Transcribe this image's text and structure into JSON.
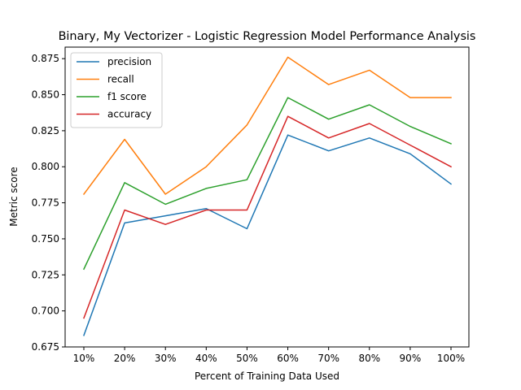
{
  "chart_data": {
    "type": "line",
    "title": "Binary, My Vectorizer - Logistic Regression Model Performance Analysis",
    "xlabel": "Percent of Training Data Used",
    "ylabel": "Metric score",
    "categories": [
      "10%",
      "20%",
      "30%",
      "40%",
      "50%",
      "60%",
      "70%",
      "80%",
      "90%",
      "100%"
    ],
    "ylim": [
      0.675,
      0.883
    ],
    "yticks": [
      "0.675",
      "0.700",
      "0.725",
      "0.750",
      "0.775",
      "0.800",
      "0.825",
      "0.850",
      "0.875"
    ],
    "grid": false,
    "legend_position": "top-left",
    "series": [
      {
        "name": "precision",
        "color": "#1f77b4",
        "values": [
          0.683,
          0.761,
          0.766,
          0.771,
          0.757,
          0.822,
          0.811,
          0.82,
          0.809,
          0.788
        ]
      },
      {
        "name": "recall",
        "color": "#ff7f0e",
        "values": [
          0.781,
          0.819,
          0.781,
          0.8,
          0.829,
          0.876,
          0.857,
          0.867,
          0.848,
          0.848
        ]
      },
      {
        "name": "f1 score",
        "color": "#2ca02c",
        "values": [
          0.729,
          0.789,
          0.774,
          0.785,
          0.791,
          0.848,
          0.833,
          0.843,
          0.828,
          0.816
        ]
      },
      {
        "name": "accuracy",
        "color": "#d62728",
        "values": [
          0.695,
          0.77,
          0.76,
          0.77,
          0.77,
          0.835,
          0.82,
          0.83,
          0.815,
          0.8
        ]
      }
    ]
  }
}
